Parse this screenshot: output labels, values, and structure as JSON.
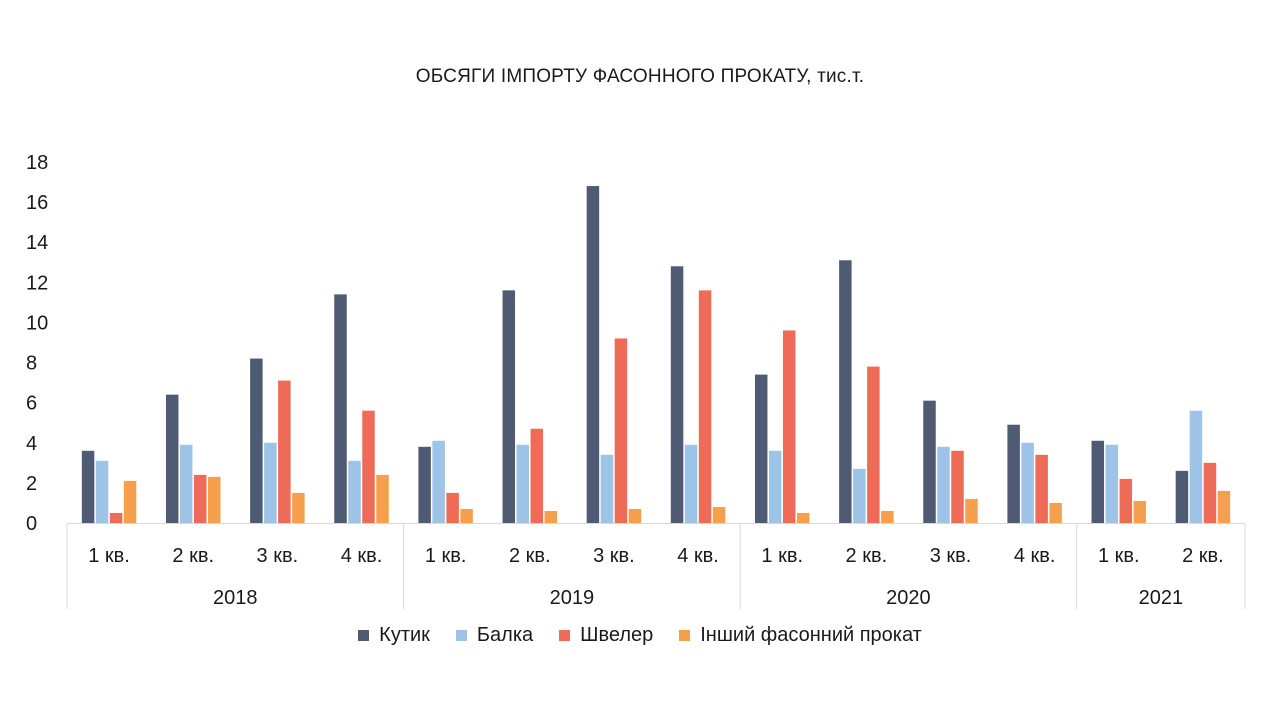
{
  "chart_data": {
    "type": "bar",
    "title": "ОБСЯГИ ІМПОРТУ ФАСОННОГО ПРОКАТУ, тис.т.",
    "ylim": [
      0,
      18
    ],
    "yticks": [
      0,
      2,
      4,
      6,
      8,
      10,
      12,
      14,
      16,
      18
    ],
    "grid": false,
    "legend_position": "bottom",
    "years": [
      {
        "label": "2018",
        "quarters": 4
      },
      {
        "label": "2019",
        "quarters": 4
      },
      {
        "label": "2020",
        "quarters": 4
      },
      {
        "label": "2021",
        "quarters": 2
      }
    ],
    "categories": [
      "1 кв.",
      "2 кв.",
      "3 кв.",
      "4 кв.",
      "1 кв.",
      "2 кв.",
      "3 кв.",
      "4 кв.",
      "1 кв.",
      "2 кв.",
      "3 кв.",
      "4 кв.",
      "1 кв.",
      "2 кв."
    ],
    "series": [
      {
        "name": "Кутик",
        "color": "#4f5b73",
        "values": [
          3.6,
          6.4,
          8.2,
          11.4,
          3.8,
          11.6,
          16.8,
          12.8,
          7.4,
          13.1,
          6.1,
          4.9,
          4.1,
          2.6
        ]
      },
      {
        "name": "Балка",
        "color": "#9dc3e6",
        "values": [
          3.1,
          3.9,
          4.0,
          3.1,
          4.1,
          3.9,
          3.4,
          3.9,
          3.6,
          2.7,
          3.8,
          4.0,
          3.9,
          5.6
        ]
      },
      {
        "name": "Швелер",
        "color": "#ee6b58",
        "values": [
          0.5,
          2.4,
          7.1,
          5.6,
          1.5,
          4.7,
          9.2,
          11.6,
          9.6,
          7.8,
          3.6,
          3.4,
          2.2,
          3.0
        ]
      },
      {
        "name": "Інший фасонний прокат",
        "color": "#f6a04d",
        "values": [
          2.1,
          2.3,
          1.5,
          2.4,
          0.7,
          0.6,
          0.7,
          0.8,
          0.5,
          0.6,
          1.2,
          1.0,
          1.1,
          1.6
        ]
      }
    ]
  }
}
